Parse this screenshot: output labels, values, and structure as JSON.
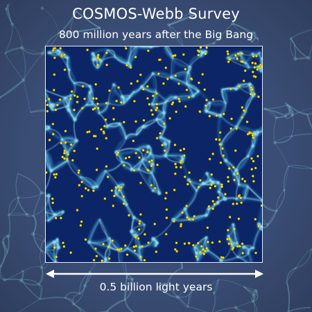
{
  "title": "COSMOS-Webb Survey",
  "subtitle": "800 million years after the Big Bang",
  "scale_bar": {
    "label": "0.5 billion light years"
  },
  "colors": {
    "outer_background": "#3a4d74",
    "inner_background": "#0b2566",
    "filament_light": "#9fe6f0",
    "filament_mid": "#3fa8d8",
    "galaxy": "#ffe600",
    "outline": "#e8ecf5",
    "text": "#ffffff"
  }
}
